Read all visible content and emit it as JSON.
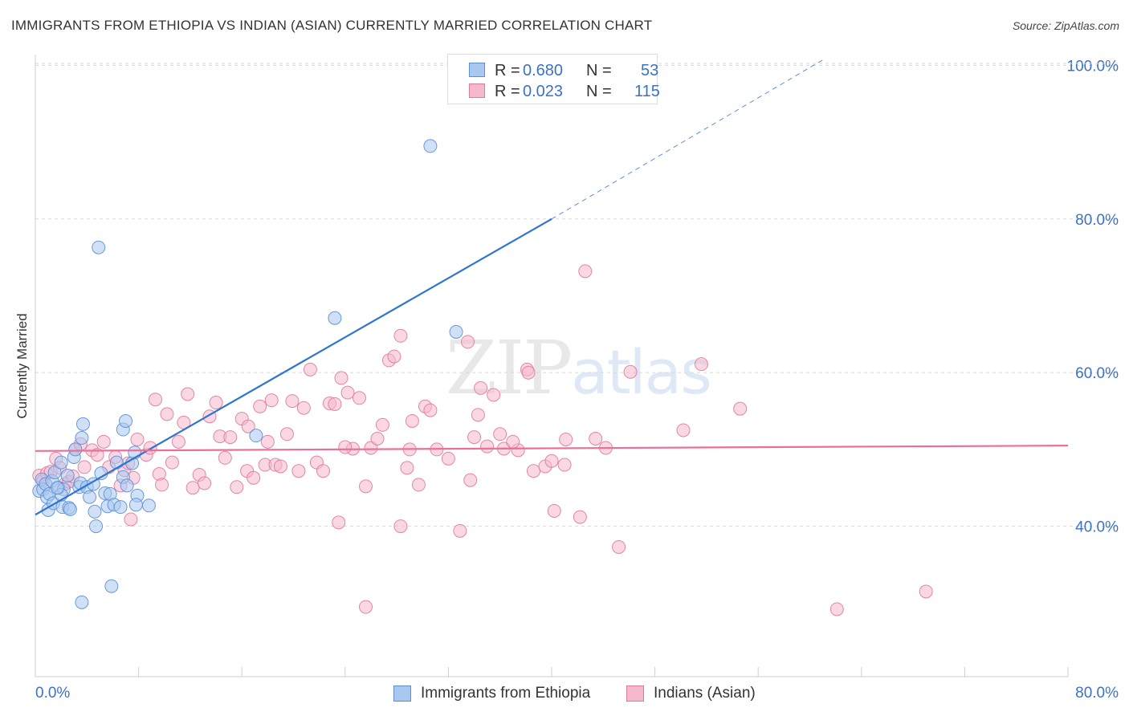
{
  "title": "IMMIGRANTS FROM ETHIOPIA VS INDIAN (ASIAN) CURRENTLY MARRIED CORRELATION CHART",
  "source": "Source: ZipAtlas.com",
  "watermark": {
    "zip": "ZIP",
    "atlas": "atlas"
  },
  "legend_top": [
    {
      "r_label": "R =",
      "r_value": "0.680",
      "n_label": "N =",
      "n_value": "53"
    },
    {
      "r_label": "R =",
      "r_value": "0.023",
      "n_label": "N =",
      "n_value": "115"
    }
  ],
  "legend_bottom": [
    "Immigrants from Ethiopia",
    "Indians (Asian)"
  ],
  "colors": {
    "blue_fill": "#a9c8f0",
    "blue_stroke": "#5b8fd6",
    "blue_line": "#2f74d0",
    "pink_fill": "#f5b8cc",
    "pink_stroke": "#e07a9c",
    "pink_line": "#e8709a",
    "axis_text": "#3a72c8",
    "grid": "#d8d8d8"
  },
  "chart_data": {
    "type": "scatter",
    "title": "IMMIGRANTS FROM ETHIOPIA VS INDIAN (ASIAN) CURRENTLY MARRIED CORRELATION CHART",
    "xlabel": "",
    "ylabel": "Currently Married",
    "xlim": [
      0,
      80
    ],
    "ylim": [
      20,
      102
    ],
    "x_tick_labels": [
      "0.0%",
      "80.0%"
    ],
    "y_ticks": [
      40,
      60,
      80,
      100
    ],
    "y_tick_labels": [
      "40.0%",
      "60.0%",
      "80.0%",
      "100.0%"
    ],
    "grid": true,
    "legend_position": "top-center",
    "series": [
      {
        "name": "Immigrants from Ethiopia",
        "r": 0.68,
        "n": 53,
        "trend": {
          "x0": 0,
          "y0": 41.5,
          "x1": 40,
          "y1": 80.0,
          "dash_x1": 61,
          "dash_y1": 100.7
        },
        "points": [
          [
            0.3,
            44.6
          ],
          [
            0.5,
            46.1
          ],
          [
            0.6,
            44.8
          ],
          [
            0.8,
            45.5
          ],
          [
            0.9,
            43.8
          ],
          [
            1.0,
            42.1
          ],
          [
            1.1,
            44.2
          ],
          [
            1.3,
            45.9
          ],
          [
            1.4,
            43.0
          ],
          [
            1.5,
            47.0
          ],
          [
            1.8,
            45.0
          ],
          [
            2.0,
            48.3
          ],
          [
            2.1,
            42.5
          ],
          [
            2.2,
            44.8
          ],
          [
            2.5,
            46.6
          ],
          [
            2.6,
            42.4
          ],
          [
            2.7,
            42.2
          ],
          [
            3.0,
            49.0
          ],
          [
            3.1,
            50.0
          ],
          [
            3.4,
            45.1
          ],
          [
            3.5,
            45.6
          ],
          [
            3.6,
            51.5
          ],
          [
            4.0,
            45.1
          ],
          [
            4.2,
            43.8
          ],
          [
            4.5,
            45.5
          ],
          [
            4.6,
            41.9
          ],
          [
            5.4,
            44.3
          ],
          [
            5.6,
            42.6
          ],
          [
            5.8,
            44.2
          ],
          [
            6.1,
            42.8
          ],
          [
            6.3,
            48.3
          ],
          [
            6.6,
            42.5
          ],
          [
            6.8,
            46.4
          ],
          [
            7.1,
            45.3
          ],
          [
            7.5,
            48.2
          ],
          [
            7.7,
            49.6
          ],
          [
            7.9,
            44.0
          ],
          [
            8.8,
            42.7
          ],
          [
            3.7,
            53.3
          ],
          [
            4.7,
            40.0
          ],
          [
            5.1,
            46.9
          ],
          [
            7.8,
            42.8
          ],
          [
            6.8,
            52.6
          ],
          [
            7.0,
            53.7
          ],
          [
            2.0,
            44.1
          ],
          [
            1.7,
            45.0
          ],
          [
            4.9,
            76.3
          ],
          [
            30.6,
            89.5
          ],
          [
            23.2,
            67.1
          ],
          [
            32.6,
            65.3
          ],
          [
            17.1,
            51.8
          ],
          [
            5.9,
            32.2
          ],
          [
            3.6,
            30.1
          ]
        ]
      },
      {
        "name": "Indians (Asian)",
        "r": 0.023,
        "n": 115,
        "trend": {
          "x0": 0,
          "y0": 49.8,
          "x1": 80,
          "y1": 50.5
        },
        "points": [
          [
            0.3,
            46.6
          ],
          [
            0.6,
            45.9
          ],
          [
            0.9,
            46.9
          ],
          [
            1.2,
            47.1
          ],
          [
            1.6,
            48.8
          ],
          [
            1.9,
            47.6
          ],
          [
            2.3,
            45.5
          ],
          [
            2.6,
            45.8
          ],
          [
            2.9,
            46.5
          ],
          [
            3.1,
            50.0
          ],
          [
            3.5,
            50.7
          ],
          [
            3.8,
            47.7
          ],
          [
            4.4,
            49.9
          ],
          [
            4.8,
            49.3
          ],
          [
            5.3,
            51.0
          ],
          [
            5.7,
            47.7
          ],
          [
            6.2,
            49.0
          ],
          [
            6.6,
            45.3
          ],
          [
            6.9,
            47.3
          ],
          [
            7.2,
            48.2
          ],
          [
            7.6,
            46.3
          ],
          [
            7.9,
            51.3
          ],
          [
            8.6,
            49.3
          ],
          [
            8.9,
            50.2
          ],
          [
            9.3,
            56.5
          ],
          [
            9.6,
            46.8
          ],
          [
            9.8,
            45.4
          ],
          [
            10.2,
            54.6
          ],
          [
            10.6,
            48.3
          ],
          [
            11.1,
            51.0
          ],
          [
            11.5,
            53.5
          ],
          [
            11.8,
            57.2
          ],
          [
            12.2,
            45.0
          ],
          [
            12.7,
            46.7
          ],
          [
            13.1,
            45.6
          ],
          [
            13.5,
            54.3
          ],
          [
            14.0,
            56.1
          ],
          [
            14.3,
            51.7
          ],
          [
            14.7,
            48.9
          ],
          [
            15.1,
            51.6
          ],
          [
            15.6,
            45.1
          ],
          [
            16.0,
            54.0
          ],
          [
            16.4,
            47.2
          ],
          [
            16.9,
            46.3
          ],
          [
            17.4,
            55.6
          ],
          [
            17.8,
            48.0
          ],
          [
            18.3,
            56.4
          ],
          [
            18.6,
            48.0
          ],
          [
            19.0,
            47.8
          ],
          [
            19.5,
            52.0
          ],
          [
            19.9,
            56.3
          ],
          [
            20.4,
            47.2
          ],
          [
            20.8,
            55.4
          ],
          [
            21.3,
            60.4
          ],
          [
            21.8,
            48.3
          ],
          [
            22.3,
            47.2
          ],
          [
            22.8,
            56.0
          ],
          [
            23.2,
            55.9
          ],
          [
            23.7,
            59.3
          ],
          [
            24.2,
            57.4
          ],
          [
            24.6,
            50.1
          ],
          [
            25.1,
            56.7
          ],
          [
            25.6,
            45.2
          ],
          [
            26.0,
            50.2
          ],
          [
            26.5,
            51.4
          ],
          [
            26.9,
            53.2
          ],
          [
            27.4,
            61.6
          ],
          [
            27.8,
            62.1
          ],
          [
            28.3,
            64.8
          ],
          [
            28.8,
            47.6
          ],
          [
            29.2,
            53.7
          ],
          [
            29.7,
            45.4
          ],
          [
            30.2,
            55.6
          ],
          [
            30.6,
            55.1
          ],
          [
            31.1,
            50.0
          ],
          [
            32.0,
            48.8
          ],
          [
            33.7,
            46.0
          ],
          [
            34.0,
            51.6
          ],
          [
            34.3,
            54.5
          ],
          [
            35.0,
            50.4
          ],
          [
            35.5,
            57.1
          ],
          [
            36.3,
            50.1
          ],
          [
            37.4,
            49.9
          ],
          [
            38.1,
            60.4
          ],
          [
            38.2,
            60.0
          ],
          [
            38.6,
            47.2
          ],
          [
            39.5,
            47.8
          ],
          [
            40.2,
            42.0
          ],
          [
            41.1,
            51.3
          ],
          [
            42.2,
            41.2
          ],
          [
            42.6,
            73.2
          ],
          [
            43.4,
            51.4
          ],
          [
            44.2,
            50.2
          ],
          [
            45.2,
            37.3
          ],
          [
            46.1,
            60.1
          ],
          [
            50.2,
            52.5
          ],
          [
            51.6,
            61.1
          ],
          [
            54.6,
            55.3
          ],
          [
            62.1,
            29.2
          ],
          [
            69.0,
            31.5
          ],
          [
            7.4,
            40.9
          ],
          [
            23.5,
            40.5
          ],
          [
            28.3,
            40.0
          ],
          [
            32.9,
            39.4
          ],
          [
            33.5,
            64.0
          ],
          [
            34.5,
            58.0
          ],
          [
            36.0,
            52.0
          ],
          [
            37.0,
            51.0
          ],
          [
            25.6,
            29.5
          ],
          [
            40.0,
            48.5
          ],
          [
            41.0,
            48.0
          ],
          [
            29.0,
            50.0
          ],
          [
            24.0,
            50.3
          ],
          [
            18.0,
            51.0
          ],
          [
            16.5,
            53.0
          ]
        ]
      }
    ]
  }
}
